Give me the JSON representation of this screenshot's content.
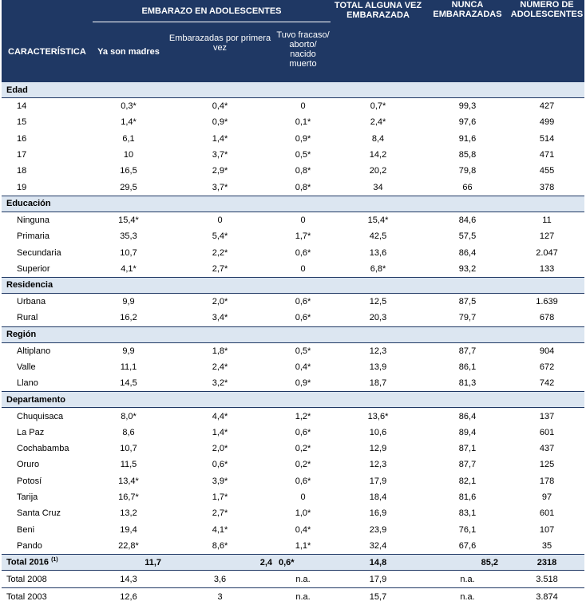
{
  "header": {
    "group": "EMBARAZO EN ADOLESCENTES",
    "columns": [
      "CARACTERÍSTICA",
      "Ya son madres",
      "Embarazadas por primera vez",
      "Tuvo fracaso/ aborto/ nacido muerto",
      "TOTAL ALGUNA VEZ EMBARAZADA",
      "NUNCA EMBARAZADAS",
      "NÚMERO DE ADOLESCENTES"
    ]
  },
  "sections": [
    {
      "title": "Edad",
      "rows": [
        [
          "14",
          "0,3*",
          "0,4*",
          "0",
          "0,7*",
          "99,3",
          "427"
        ],
        [
          "15",
          "1,4*",
          "0,9*",
          "0,1*",
          "2,4*",
          "97,6",
          "499"
        ],
        [
          "16",
          "6,1",
          "1,4*",
          "0,9*",
          "8,4",
          "91,6",
          "514"
        ],
        [
          "17",
          "10",
          "3,7*",
          "0,5*",
          "14,2",
          "85,8",
          "471"
        ],
        [
          "18",
          "16,5",
          "2,9*",
          "0,8*",
          "20,2",
          "79,8",
          "455"
        ],
        [
          "19",
          "29,5",
          "3,7*",
          "0,8*",
          "34",
          "66",
          "378"
        ]
      ]
    },
    {
      "title": "Educación",
      "rows": [
        [
          "Ninguna",
          "15,4*",
          "0",
          "0",
          "15,4*",
          "84,6",
          "11"
        ],
        [
          "Primaria",
          "35,3",
          "5,4*",
          "1,7*",
          "42,5",
          "57,5",
          "127"
        ],
        [
          "Secundaria",
          "10,7",
          "2,2*",
          "0,6*",
          "13,6",
          "86,4",
          "2.047"
        ],
        [
          "Superior",
          "4,1*",
          "2,7*",
          "0",
          "6,8*",
          "93,2",
          "133"
        ]
      ]
    },
    {
      "title": "Residencia",
      "rows": [
        [
          "Urbana",
          "9,9",
          "2,0*",
          "0,6*",
          "12,5",
          "87,5",
          "1.639"
        ],
        [
          "Rural",
          "16,2",
          "3,4*",
          "0,6*",
          "20,3",
          "79,7",
          "678"
        ]
      ]
    },
    {
      "title": "Región",
      "rows": [
        [
          "Altiplano",
          "9,9",
          "1,8*",
          "0,5*",
          "12,3",
          "87,7",
          "904"
        ],
        [
          "Valle",
          "11,1",
          "2,4*",
          "0,4*",
          "13,9",
          "86,1",
          "672"
        ],
        [
          "Llano",
          "14,5",
          "3,2*",
          "0,9*",
          "18,7",
          "81,3",
          "742"
        ]
      ]
    },
    {
      "title": "Departamento",
      "rows": [
        [
          "Chuquisaca",
          "8,0*",
          "4,4*",
          "1,2*",
          "13,6*",
          "86,4",
          "137"
        ],
        [
          "La Paz",
          "8,6",
          "1,4*",
          "0,6*",
          "10,6",
          "89,4",
          "601"
        ],
        [
          "Cochabamba",
          "10,7",
          "2,0*",
          "0,2*",
          "12,9",
          "87,1",
          "437"
        ],
        [
          "Oruro",
          "11,5",
          "0,6*",
          "0,2*",
          "12,3",
          "87,7",
          "125"
        ],
        [
          "Potosí",
          "13,4*",
          "3,9*",
          "0,6*",
          "17,9",
          "82,1",
          "178"
        ],
        [
          "Tarija",
          "16,7*",
          "1,7*",
          "0",
          "18,4",
          "81,6",
          "97"
        ],
        [
          "Santa Cruz",
          "13,2",
          "2,7*",
          "1,0*",
          "16,9",
          "83,1",
          "601"
        ],
        [
          "Beni",
          "19,4",
          "4,1*",
          "0,4*",
          "23,9",
          "76,1",
          "107"
        ],
        [
          "Pando",
          "22,8*",
          "8,6*",
          "1,1*",
          "32,4",
          "67,6",
          "35"
        ]
      ]
    }
  ],
  "total_2016": {
    "label": "Total 2016",
    "note": "(1)",
    "values": [
      "11,7",
      "2,4",
      "0,6*",
      "14,8",
      "85,2",
      "2318"
    ]
  },
  "totals_past": [
    [
      "Total 2008",
      "14,3",
      "3,6",
      "n.a.",
      "17,9",
      "n.a.",
      "3.518"
    ],
    [
      "Total 2003",
      "12,6",
      "3",
      "n.a.",
      "15,7",
      "n.a.",
      "3.874"
    ]
  ]
}
